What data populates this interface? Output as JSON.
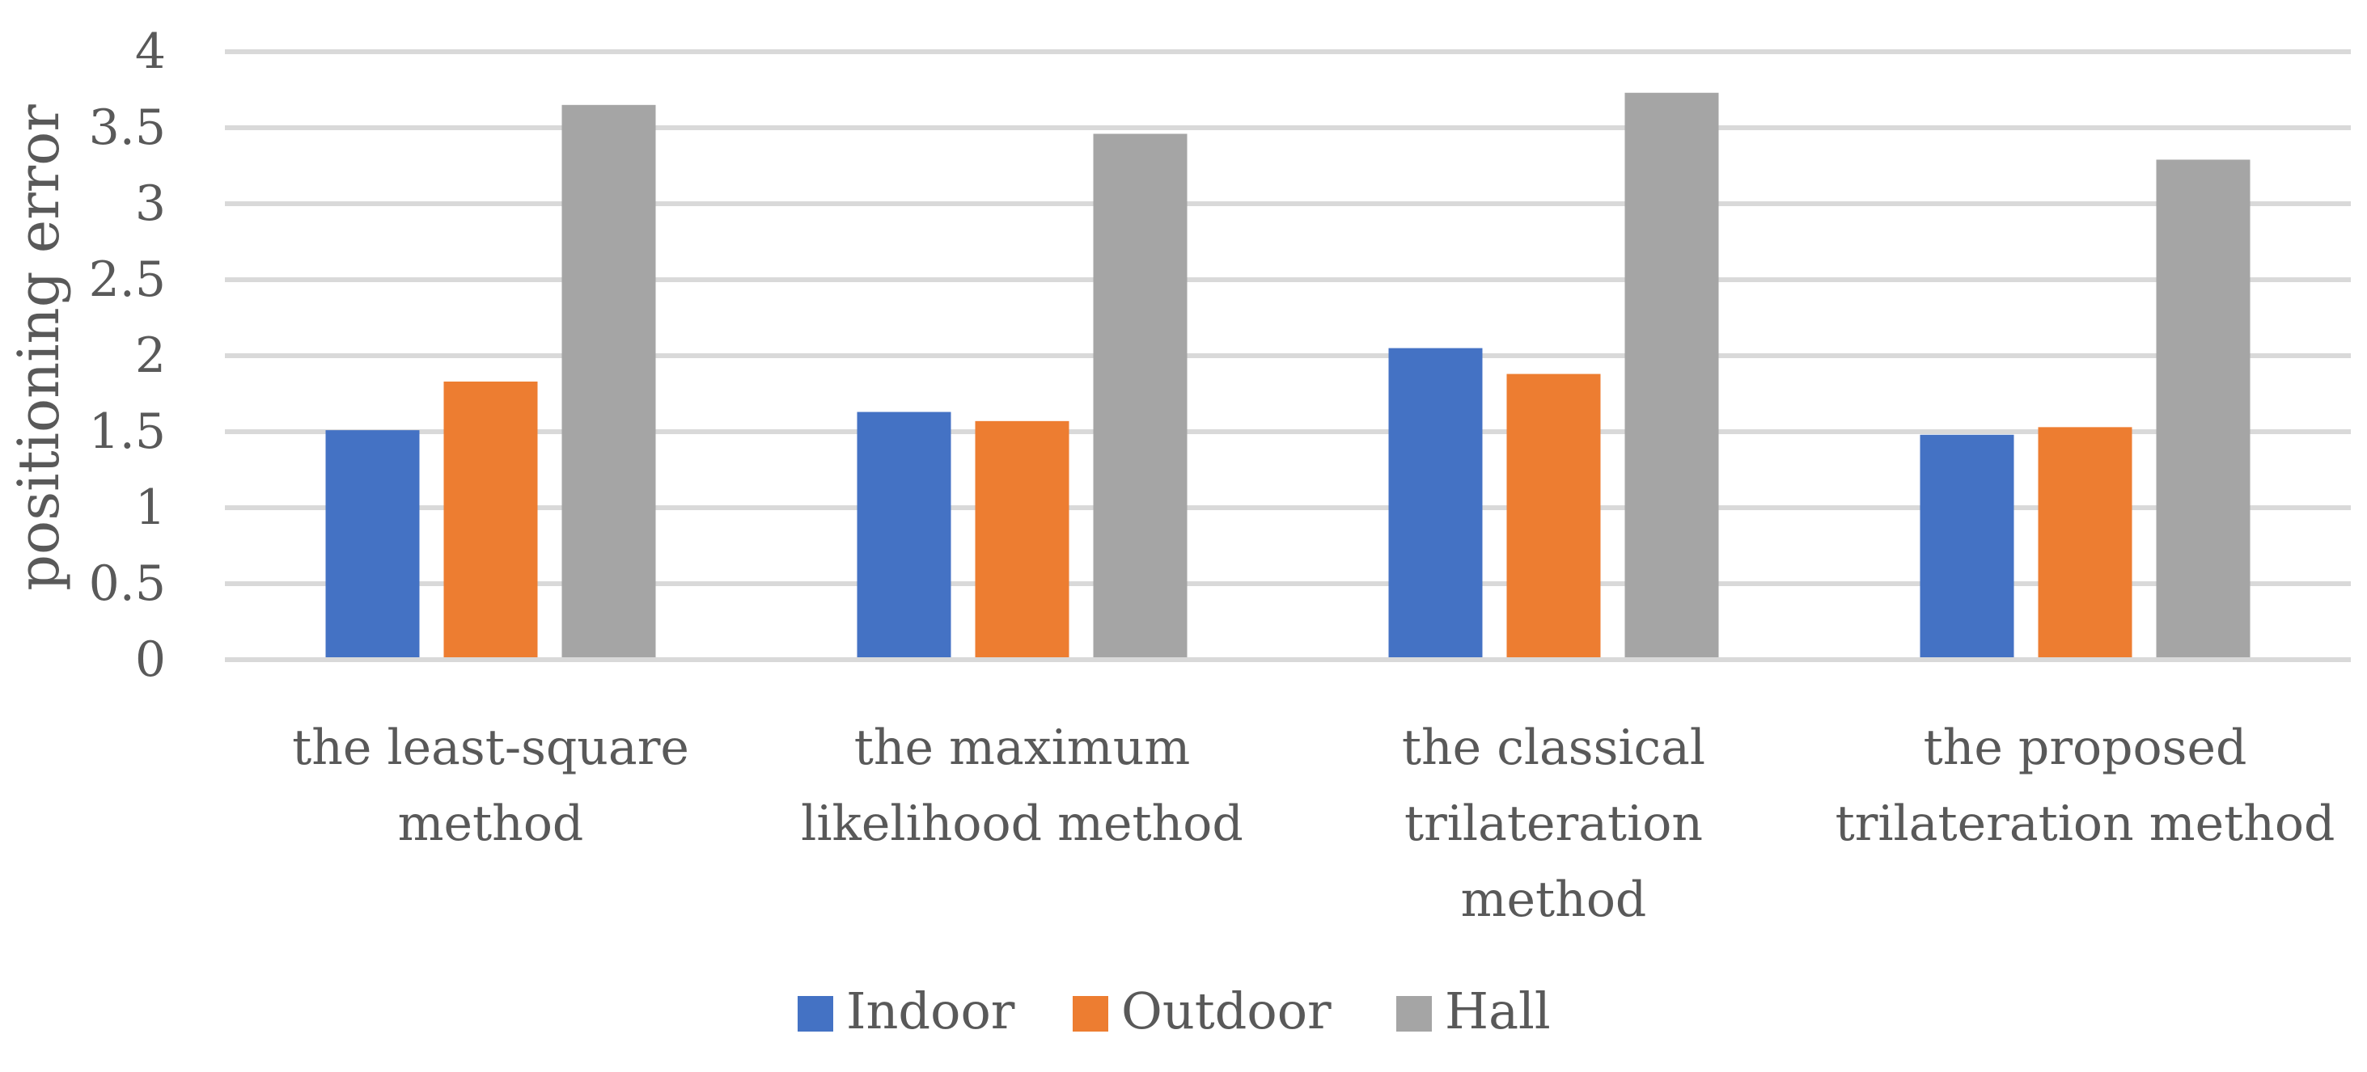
{
  "chart_data": {
    "type": "bar",
    "title": "",
    "xlabel": "",
    "ylabel": "positioning error",
    "ylim": [
      0,
      4
    ],
    "yticks": [
      "0",
      "0.5",
      "1",
      "1.5",
      "2",
      "2.5",
      "3",
      "3.5",
      "4"
    ],
    "grid": true,
    "legend_position": "bottom",
    "categories": [
      [
        "the least-square",
        "method"
      ],
      [
        "the maximum",
        "likelihood method"
      ],
      [
        "the classical",
        "trilateration",
        "method"
      ],
      [
        "the proposed",
        "trilateration method"
      ]
    ],
    "series": [
      {
        "name": "Indoor",
        "color": "#4472c4",
        "values": [
          1.51,
          1.63,
          2.05,
          1.48
        ]
      },
      {
        "name": "Outdoor",
        "color": "#ed7d31",
        "values": [
          1.83,
          1.57,
          1.88,
          1.53
        ]
      },
      {
        "name": "Hall",
        "color": "#a5a5a5",
        "values": [
          3.65,
          3.46,
          3.73,
          3.29
        ]
      }
    ]
  }
}
